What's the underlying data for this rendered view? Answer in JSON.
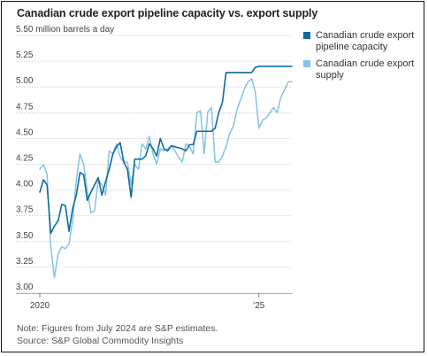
{
  "chart_data": {
    "type": "line",
    "title": "Canadian crude export pipeline capacity vs. export supply",
    "ylabel": "million barrels a day",
    "y_top_tick_label": "5.50 million barrels a day",
    "y_ticks": [
      "5.25",
      "5.00",
      "4.75",
      "4.50",
      "4.25",
      "4.00",
      "3.75",
      "3.50",
      "3.25",
      "3.00"
    ],
    "y_tick_values": [
      5.25,
      5.0,
      4.75,
      4.5,
      4.25,
      4.0,
      3.75,
      3.5,
      3.25,
      3.0
    ],
    "ylim": [
      3.0,
      5.5
    ],
    "x_ticks": [
      "2020",
      "'25"
    ],
    "x_tick_positions": [
      0,
      60
    ],
    "x_start": "2020-01",
    "xlim": [
      0,
      69
    ],
    "grid": true,
    "legend_placement": "right",
    "series": [
      {
        "name": "Canadian crude export pipeline capacity",
        "color": "#0e6c9d",
        "x": [
          0,
          1,
          2,
          3,
          4,
          5,
          6,
          7,
          8,
          9,
          10,
          11,
          12,
          13,
          14,
          15,
          16,
          17,
          18,
          19,
          20,
          21,
          22,
          23,
          24,
          25,
          26,
          27,
          28,
          29,
          30,
          31,
          32,
          33,
          34,
          35,
          36,
          37,
          38,
          39,
          40,
          41,
          42,
          43,
          44,
          45,
          46,
          47,
          48,
          49,
          50,
          51,
          52,
          53,
          54,
          55,
          56,
          57,
          58,
          59,
          60,
          61,
          62,
          63,
          64,
          65,
          66,
          67,
          68,
          69
        ],
        "values": [
          3.98,
          4.1,
          4.05,
          3.58,
          3.65,
          3.7,
          3.86,
          3.85,
          3.6,
          3.82,
          3.95,
          4.17,
          4.15,
          3.9,
          3.98,
          4.05,
          4.12,
          3.95,
          4.08,
          4.2,
          4.35,
          4.42,
          4.46,
          4.27,
          4.2,
          3.93,
          4.3,
          4.3,
          4.3,
          4.33,
          4.45,
          4.4,
          4.33,
          4.5,
          4.4,
          4.38,
          4.43,
          4.42,
          4.41,
          4.4,
          4.38,
          4.44,
          4.44,
          4.57,
          4.57,
          4.57,
          4.57,
          4.57,
          4.6,
          4.75,
          4.85,
          5.14,
          5.14,
          5.14,
          5.14,
          5.14,
          5.14,
          5.14,
          5.14,
          5.19,
          5.2,
          5.2,
          5.2,
          5.2,
          5.2,
          5.2,
          5.2,
          5.2,
          5.2,
          5.2
        ]
      },
      {
        "name": "Canadian crude export supply",
        "color": "#86c3e8",
        "x": [
          0,
          1,
          2,
          3,
          4,
          5,
          6,
          7,
          8,
          9,
          10,
          11,
          12,
          13,
          14,
          15,
          16,
          17,
          18,
          19,
          20,
          21,
          22,
          23,
          24,
          25,
          26,
          27,
          28,
          29,
          30,
          31,
          32,
          33,
          34,
          35,
          36,
          37,
          38,
          39,
          40,
          41,
          42,
          43,
          44,
          45,
          46,
          47,
          48,
          49,
          50,
          51,
          52,
          53,
          54,
          55,
          56,
          57,
          58,
          59,
          60,
          61,
          62,
          63,
          64,
          65,
          66,
          67,
          68,
          69
        ],
        "values": [
          4.2,
          4.25,
          4.15,
          3.45,
          3.15,
          3.38,
          3.45,
          3.43,
          3.48,
          3.7,
          4.1,
          4.35,
          4.25,
          4.0,
          3.78,
          3.8,
          4.1,
          4.05,
          3.95,
          4.38,
          4.35,
          4.45,
          4.32,
          4.27,
          4.27,
          4.05,
          4.25,
          4.2,
          4.45,
          4.4,
          4.52,
          4.35,
          4.25,
          4.4,
          4.38,
          4.4,
          4.43,
          4.38,
          4.32,
          4.27,
          4.45,
          4.42,
          4.35,
          4.75,
          4.77,
          4.35,
          4.76,
          4.8,
          4.27,
          4.27,
          4.33,
          4.42,
          4.55,
          4.62,
          4.78,
          4.88,
          4.98,
          5.05,
          5.08,
          4.95,
          4.6,
          4.68,
          4.7,
          4.75,
          4.8,
          4.75,
          4.9,
          4.97,
          5.05,
          5.05
        ]
      }
    ],
    "notes": "Note: Figures from July 2024 are S&P estimates.",
    "source": "Source: S&P Global Commodity Insights"
  }
}
